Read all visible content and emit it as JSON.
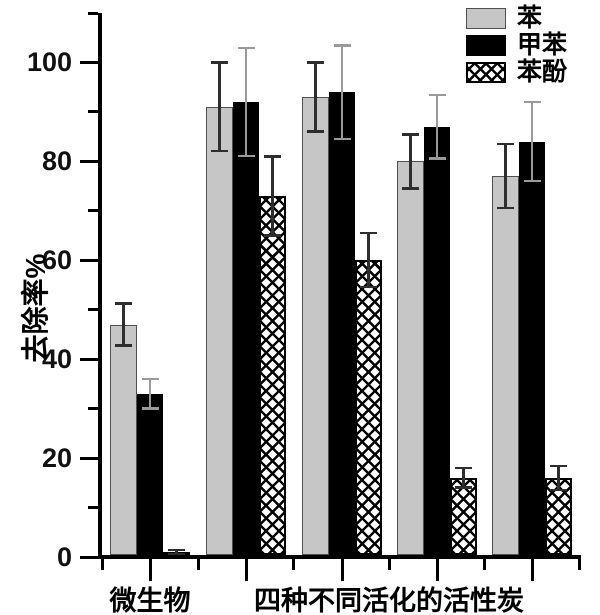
{
  "chart_data": {
    "type": "bar",
    "title": "",
    "ylabel": "去除率%",
    "xlabel": "",
    "ylim": [
      0,
      110
    ],
    "y_major_ticks": [
      0,
      20,
      40,
      60,
      80,
      100
    ],
    "y_minor_ticks": [
      10,
      30,
      50,
      70,
      90,
      110
    ],
    "grid": "off",
    "legend_position": "top-right",
    "n_groups": 5,
    "x_axis_labels": [
      {
        "text": "微生物",
        "anchor_group": 0
      },
      {
        "text": "四种不同活化的活性炭",
        "anchor_group": 2.5
      }
    ],
    "series": [
      {
        "name": "苯",
        "style": "solid-gray",
        "color": "#c6c6c6",
        "error_color": "#2e2e2e",
        "values": [
          47,
          91,
          93,
          80,
          77
        ],
        "errors": [
          4.3,
          9,
          7,
          5.5,
          6.5
        ]
      },
      {
        "name": "甲苯",
        "style": "solid-black",
        "color": "#000000",
        "error_color": "#9a9a9a",
        "values": [
          33,
          92,
          94,
          87,
          84
        ],
        "errors": [
          3,
          11,
          9.5,
          6.5,
          8
        ]
      },
      {
        "name": "苯酚",
        "style": "crosshatch",
        "color": "#ffffff",
        "error_color": "#2e2e2e",
        "values": [
          1,
          73,
          60,
          16,
          16
        ],
        "errors": [
          0.5,
          8,
          5.5,
          2,
          2.5
        ]
      }
    ],
    "axis_color": "#000000",
    "background_color": "#ffffff"
  }
}
